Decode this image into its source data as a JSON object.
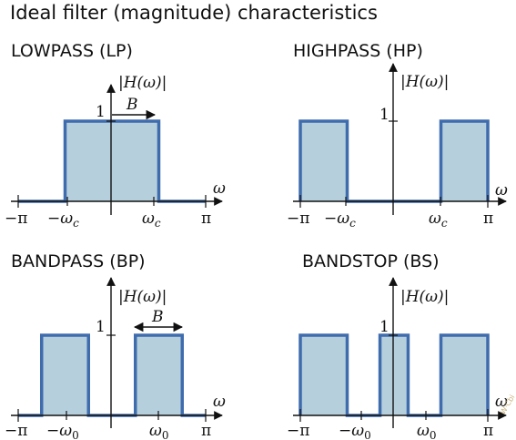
{
  "title": "Ideal filter (magnitude) characteristics",
  "colors": {
    "line": "#3f6cad",
    "fill": "#b6cfdc",
    "axis": "#111111"
  },
  "axis_label_y": "|H(ω)|",
  "axis_label_x": "ω",
  "one": "1",
  "bandwidth_label": "B",
  "ticks": {
    "neg_pi": "−π",
    "pi": "π",
    "neg_wc_sym": "−ω",
    "wc_sym": "ω",
    "c_sub": "c",
    "neg_w0_sym": "−ω",
    "w0_sym": "ω",
    "zero_sub": "0"
  },
  "panels": [
    {
      "name": "lowpass",
      "title": "LOWPASS (LP)",
      "passbands": [
        [
          -0.5,
          0.5
        ]
      ]
    },
    {
      "name": "highpass",
      "title": "HIGHPASS (HP)",
      "passbands": [
        [
          -1.0,
          -0.5
        ],
        [
          0.5,
          1.0
        ]
      ]
    },
    {
      "name": "bandpass",
      "title": "BANDPASS (BP)",
      "passbands": [
        [
          -0.75,
          -0.25
        ],
        [
          0.25,
          0.75
        ]
      ]
    },
    {
      "name": "bandstop",
      "title": "BANDSTOP (BS)",
      "passbands": [
        [
          -1.0,
          -0.5
        ],
        [
          -0.15,
          0.15
        ],
        [
          0.5,
          1.0
        ]
      ]
    }
  ]
}
